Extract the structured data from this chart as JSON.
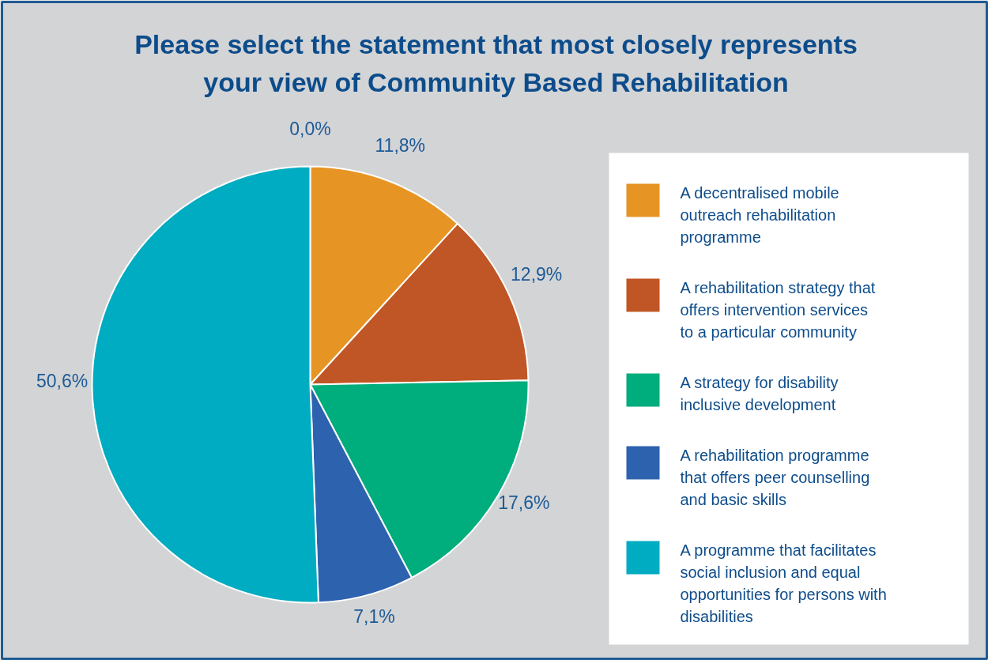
{
  "chart_data": {
    "type": "pie",
    "title": "Please select the statement that most closely represents your view of Community Based Rehabilitation",
    "categories": [
      null,
      "A decentralised mobile outreach rehabilitation programme",
      "A rehabilitation strategy that offers intervention services to a particular community",
      "A strategy for disability inclusive  development",
      "A rehabilitation programme that offers peer counselling and basic skills",
      "A programme that facilitates social inclusion and equal opportunities for persons with disabilities"
    ],
    "values": [
      0.0,
      11.8,
      12.9,
      17.6,
      7.1,
      50.6
    ],
    "colors": [
      "#9e9e9e",
      "#e69424",
      "#c05625",
      "#00ad7c",
      "#2d62ae",
      "#00acc1"
    ],
    "value_labels": [
      "0,0%",
      "11,8%",
      "12,9%",
      "17,6%",
      "7,1%",
      "50,6%"
    ],
    "legend": "right"
  }
}
